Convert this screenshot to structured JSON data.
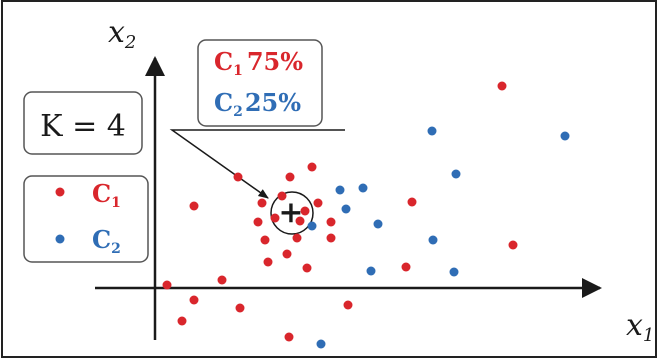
{
  "diagram": {
    "axes": {
      "x_label": "x",
      "x_subscript": "1",
      "y_label": "x",
      "y_subscript": "2"
    },
    "k_box": {
      "text": "K = 4"
    },
    "ratio_box": {
      "c1": {
        "label": "C",
        "subscript": "1",
        "value": "75%"
      },
      "c2": {
        "label": "C",
        "subscript": "2",
        "value": "25%"
      }
    },
    "legend": {
      "c1": {
        "label": "C",
        "subscript": "1"
      },
      "c2": {
        "label": "C",
        "subscript": "2"
      }
    },
    "colors": {
      "class1": "#d9262c",
      "class2": "#2f6db5",
      "ink": "#1a1a1a",
      "box_border": "#555555"
    },
    "query_marker": "+"
  }
}
